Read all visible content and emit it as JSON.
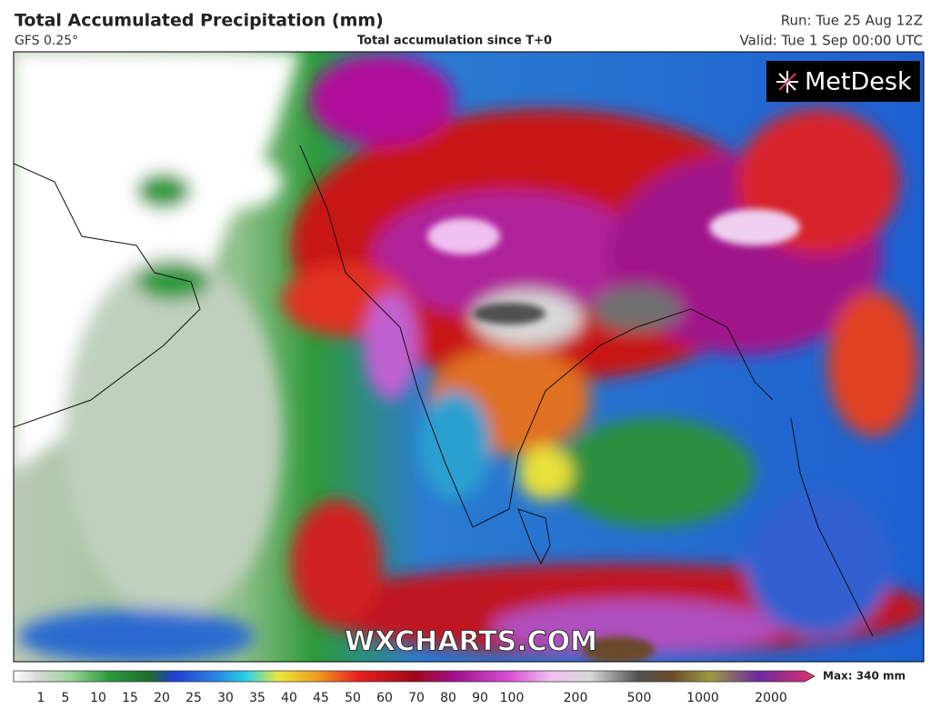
{
  "header": {
    "title": "Total Accumulated Precipitation (mm)",
    "model": "GFS 0.25°",
    "subtitle": "Total accumulation since T+0",
    "run": "Run: Tue 25 Aug 12Z",
    "valid": "Valid: Tue 1 Sep 00:00 UTC"
  },
  "map": {
    "logo": "MetDesk",
    "watermark": "WXCHARTS.COM"
  },
  "legend": {
    "ticks": [
      1,
      5,
      10,
      15,
      20,
      25,
      30,
      35,
      40,
      45,
      50,
      60,
      70,
      80,
      90,
      100,
      200,
      500,
      1000,
      2000
    ],
    "max": "Max: 340 mm"
  }
}
